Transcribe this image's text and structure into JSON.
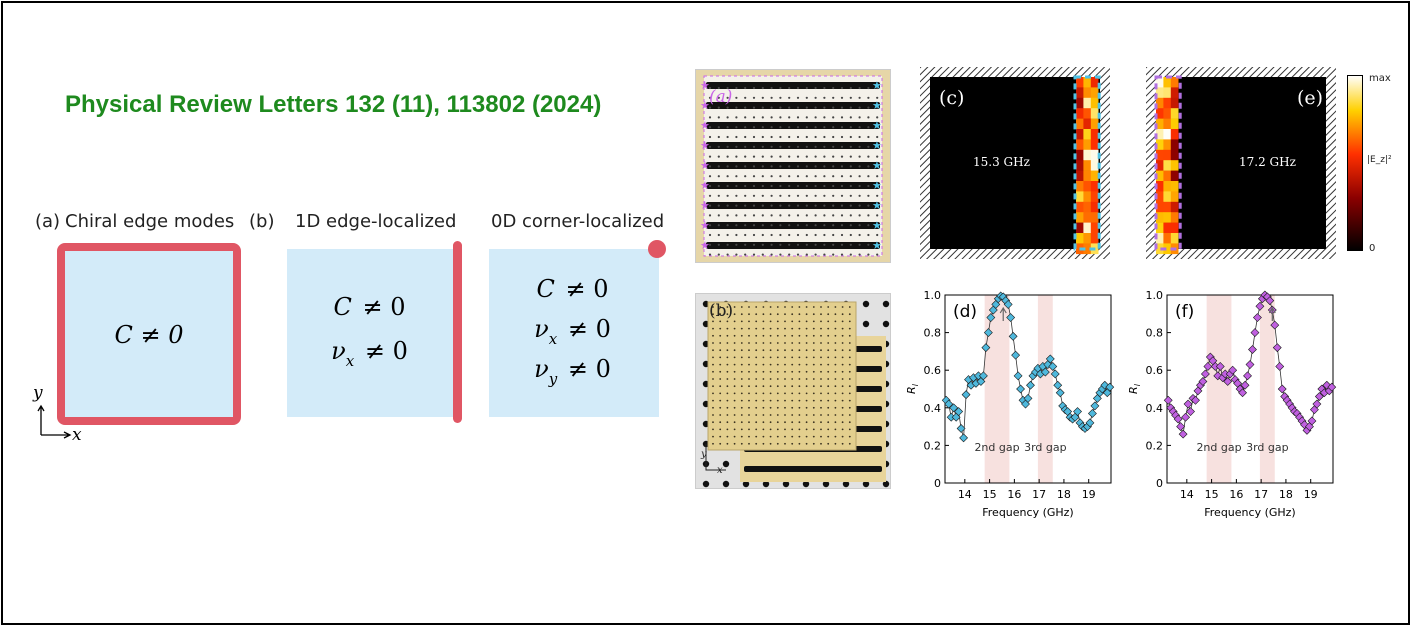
{
  "title": "Physical Review Letters 132 (11), 113802 (2024)",
  "schematic": {
    "a_tag": "(a)",
    "a_title": "Chiral edge modes",
    "b_tag": "(b)",
    "b_title": "1D edge-localized",
    "c_title": "0D corner-localized",
    "box1_lines": [
      "C ≠ 0"
    ],
    "box2_C": "C",
    "box2_nu": "ν",
    "box2_sub": "x",
    "box3_nu_y_sub": "y",
    "neq_zero": "≠ 0",
    "axis_y": "y",
    "axis_x": "x"
  },
  "photos": {
    "top_label": "(a)",
    "bottom_label": "(b)",
    "axis_y": "y",
    "axis_x": "x"
  },
  "field_maps": {
    "c": {
      "label": "(c)",
      "freq": "15.3 GHz",
      "edge": "right",
      "edge_color": "#4fc3e6"
    },
    "e": {
      "label": "(e)",
      "freq": "17.2 GHz",
      "edge": "left",
      "edge_color": "#b070e0"
    },
    "colorbar": {
      "max": "max",
      "min": "0",
      "quantity": "|E_z|²"
    }
  },
  "chart_data": [
    {
      "panel": "(d)",
      "type": "line",
      "xlabel": "Frequency (GHz)",
      "ylabel": "R_l",
      "xlim": [
        13.2,
        19.9
      ],
      "ylim": [
        0,
        1.0
      ],
      "xticks": [
        14,
        15,
        16,
        17,
        18,
        19
      ],
      "yticks": [
        0,
        0.2,
        0.4,
        0.6,
        0.8,
        1.0
      ],
      "ytick_labels": [
        "0",
        "0.2",
        "0.4",
        "0.6",
        "0.8",
        "1.0"
      ],
      "gaps": [
        {
          "label": "2nd gap",
          "range": [
            14.8,
            15.8
          ]
        },
        {
          "label": "3rd gap",
          "range": [
            16.95,
            17.55
          ]
        }
      ],
      "arrow_at": 15.55,
      "color": "#4fb8dc",
      "x": [
        13.25,
        13.35,
        13.45,
        13.55,
        13.65,
        13.75,
        13.85,
        13.95,
        14.05,
        14.15,
        14.25,
        14.35,
        14.45,
        14.55,
        14.65,
        14.75,
        14.85,
        14.95,
        15.05,
        15.15,
        15.25,
        15.35,
        15.45,
        15.55,
        15.65,
        15.75,
        15.85,
        15.95,
        16.05,
        16.15,
        16.25,
        16.35,
        16.45,
        16.55,
        16.65,
        16.75,
        16.85,
        16.95,
        17.05,
        17.15,
        17.25,
        17.35,
        17.45,
        17.55,
        17.65,
        17.75,
        17.85,
        17.95,
        18.05,
        18.15,
        18.25,
        18.35,
        18.45,
        18.55,
        18.65,
        18.75,
        18.85,
        18.95,
        19.05,
        19.15,
        19.25,
        19.35,
        19.45,
        19.55,
        19.65,
        19.75,
        19.85
      ],
      "values": [
        0.44,
        0.42,
        0.35,
        0.4,
        0.35,
        0.38,
        0.29,
        0.24,
        0.47,
        0.55,
        0.52,
        0.56,
        0.53,
        0.57,
        0.54,
        0.57,
        0.72,
        0.8,
        0.88,
        0.92,
        0.95,
        0.98,
        0.995,
        0.99,
        0.97,
        0.95,
        0.88,
        0.78,
        0.68,
        0.57,
        0.5,
        0.44,
        0.42,
        0.45,
        0.52,
        0.57,
        0.59,
        0.61,
        0.58,
        0.62,
        0.59,
        0.63,
        0.66,
        0.62,
        0.58,
        0.52,
        0.48,
        0.41,
        0.39,
        0.38,
        0.35,
        0.34,
        0.35,
        0.38,
        0.32,
        0.3,
        0.29,
        0.3,
        0.32,
        0.37,
        0.41,
        0.45,
        0.48,
        0.5,
        0.52,
        0.48,
        0.51
      ]
    },
    {
      "panel": "(f)",
      "type": "line",
      "xlabel": "Frequency (GHz)",
      "ylabel": "R_l",
      "xlim": [
        13.2,
        19.9
      ],
      "ylim": [
        0,
        1.0
      ],
      "xticks": [
        14,
        15,
        16,
        17,
        18,
        19
      ],
      "yticks": [
        0,
        0.2,
        0.4,
        0.6,
        0.8,
        1.0
      ],
      "ytick_labels": [
        "0",
        "0.2",
        "0.4",
        "0.6",
        "0.8",
        "1.0"
      ],
      "gaps": [
        {
          "label": "2nd gap",
          "range": [
            14.8,
            15.8
          ]
        },
        {
          "label": "3rd gap",
          "range": [
            16.95,
            17.55
          ]
        }
      ],
      "arrow_at": 17.45,
      "color": "#c060e0",
      "x": [
        13.25,
        13.35,
        13.45,
        13.55,
        13.65,
        13.75,
        13.85,
        13.95,
        14.05,
        14.15,
        14.25,
        14.35,
        14.45,
        14.55,
        14.65,
        14.75,
        14.85,
        14.95,
        15.05,
        15.15,
        15.25,
        15.35,
        15.45,
        15.55,
        15.65,
        15.75,
        15.85,
        15.95,
        16.05,
        16.15,
        16.25,
        16.35,
        16.45,
        16.55,
        16.65,
        16.75,
        16.85,
        16.95,
        17.05,
        17.15,
        17.25,
        17.35,
        17.45,
        17.55,
        17.65,
        17.75,
        17.85,
        17.95,
        18.05,
        18.15,
        18.25,
        18.35,
        18.45,
        18.55,
        18.65,
        18.75,
        18.85,
        18.95,
        19.05,
        19.15,
        19.25,
        19.35,
        19.45,
        19.55,
        19.65,
        19.75,
        19.85
      ],
      "values": [
        0.44,
        0.4,
        0.38,
        0.36,
        0.34,
        0.3,
        0.26,
        0.35,
        0.42,
        0.38,
        0.45,
        0.44,
        0.49,
        0.52,
        0.54,
        0.58,
        0.62,
        0.67,
        0.65,
        0.62,
        0.57,
        0.62,
        0.56,
        0.58,
        0.54,
        0.58,
        0.6,
        0.55,
        0.53,
        0.5,
        0.48,
        0.52,
        0.57,
        0.63,
        0.71,
        0.8,
        0.88,
        0.94,
        0.98,
        1.0,
        0.99,
        0.97,
        0.92,
        0.84,
        0.72,
        0.62,
        0.5,
        0.46,
        0.44,
        0.42,
        0.4,
        0.38,
        0.37,
        0.35,
        0.33,
        0.31,
        0.28,
        0.3,
        0.33,
        0.39,
        0.42,
        0.46,
        0.5,
        0.48,
        0.52,
        0.49,
        0.51
      ]
    }
  ]
}
